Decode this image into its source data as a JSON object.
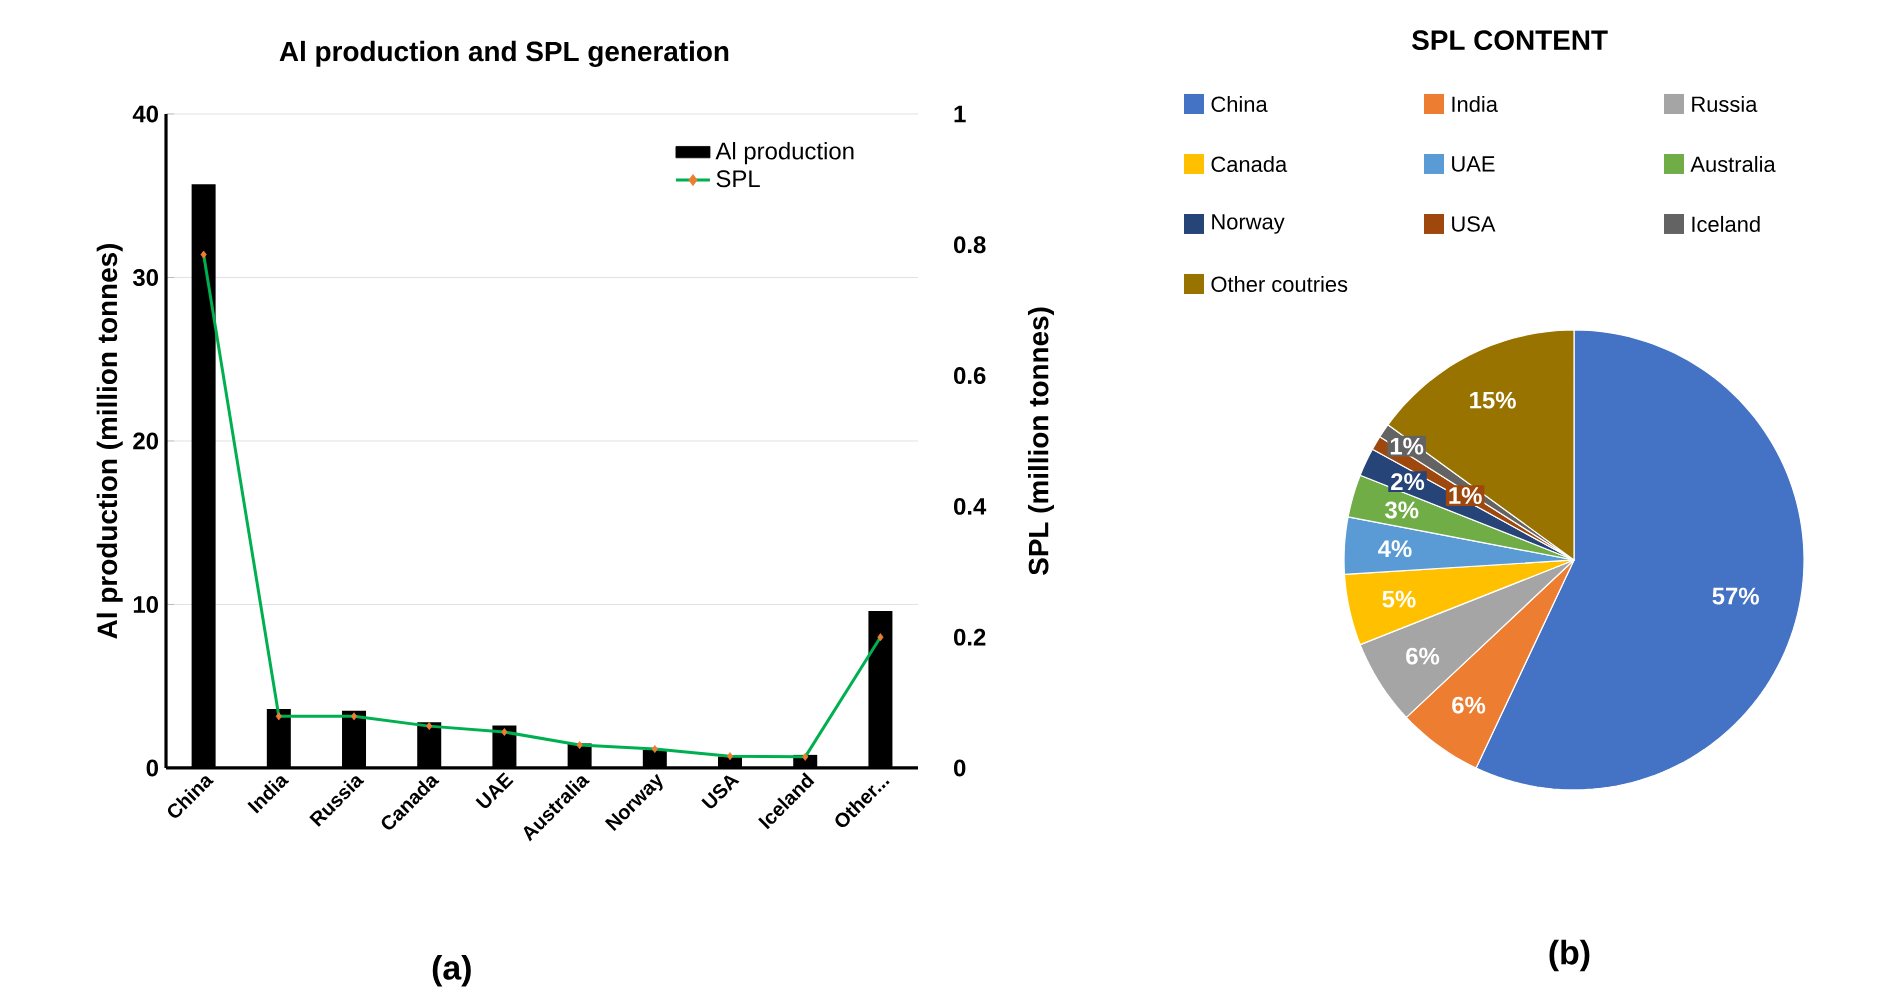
{
  "chart_data": [
    {
      "type": "bar",
      "title": "Al production and SPL generation",
      "ylabel": "Al production (million tonnes)",
      "y2label": "SPL (million tonnes)",
      "categories": [
        "China",
        "India",
        "Russia",
        "Canada",
        "UAE",
        "Australia",
        "Norway",
        "USA",
        "Iceland",
        "Other..."
      ],
      "series": [
        {
          "name": "Al production",
          "type": "bar",
          "color": "#000000",
          "values": [
            35.7,
            3.6,
            3.5,
            2.8,
            2.6,
            1.5,
            1.1,
            0.7,
            0.8,
            9.6
          ]
        },
        {
          "name": "SPL",
          "type": "line",
          "axis": "y2",
          "color": "#00b050",
          "marker": "diamond",
          "colors": [
            "#ed7d31",
            "#ed7d31",
            "#ed7d31",
            "#ed7d31",
            "#ed7d31",
            "#ed7d31",
            "#ed7d31",
            "#ed7d31",
            "#ed7d31",
            "#ed7d31"
          ],
          "values": [
            0.785,
            0.079,
            0.079,
            0.064,
            0.055,
            0.035,
            0.029,
            0.018,
            0.017,
            0.2
          ]
        }
      ],
      "ylim": [
        0,
        40
      ],
      "yticks": [
        0,
        10,
        20,
        30,
        40
      ],
      "y2lim": [
        0,
        1
      ],
      "y2ticks": [
        0,
        0.2,
        0.4,
        0.6,
        0.8,
        1
      ],
      "grid": "y",
      "legend": "top right",
      "annotations": [
        "(a)"
      ]
    },
    {
      "type": "pie",
      "title": "SPL CONTENT",
      "categories": [
        "China",
        "India",
        "Russia",
        "Canada",
        "UAE",
        "Australia",
        "Norway",
        "USA",
        "Iceland",
        "Other coutries"
      ],
      "values": [
        57,
        6,
        6,
        5,
        4,
        3,
        2,
        1,
        1,
        15
      ],
      "value_labels": [
        "57%",
        "6%",
        "6%",
        "5%",
        "4%",
        "3%",
        "2%",
        "1%",
        "1%",
        "15%"
      ],
      "colors": [
        "#4472c4",
        "#ed7d31",
        "#a5a5a5",
        "#ffc000",
        "#5b9bd5",
        "#70ad47",
        "#264478",
        "#9e480e",
        "#636363",
        "#997300"
      ],
      "legend": "top",
      "annotations": [
        "(b)"
      ]
    }
  ]
}
